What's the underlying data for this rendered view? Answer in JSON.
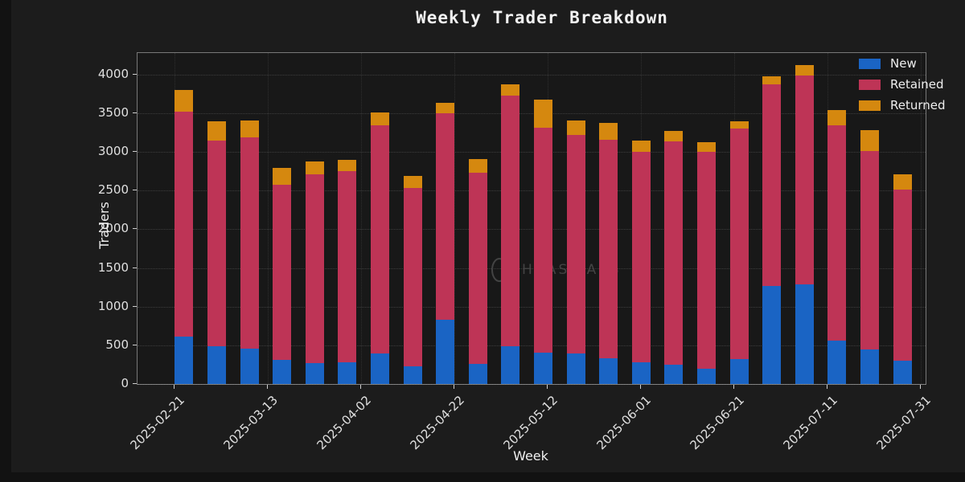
{
  "page": {
    "background": "#121212",
    "figure_background": "#1c1c1c",
    "plot_background": "#181818"
  },
  "title": "Weekly Trader Breakdown",
  "watermark": {
    "icon": "ellipse-logo-icon",
    "text": "HAAS LABS"
  },
  "axes": {
    "x_label": "Week",
    "y_label": "Traders"
  },
  "legend": {
    "position": "upper right",
    "items": [
      {
        "label": "New",
        "color": "#1a64c4"
      },
      {
        "label": "Retained",
        "color": "#be3456"
      },
      {
        "label": "Returned",
        "color": "#d5880f"
      }
    ]
  },
  "chart_data": {
    "type": "bar",
    "stacked": true,
    "title": "Weekly Trader Breakdown",
    "xlabel": "Week",
    "ylabel": "Traders",
    "x": [
      "2025-02-23",
      "2025-03-02",
      "2025-03-09",
      "2025-03-16",
      "2025-03-23",
      "2025-03-30",
      "2025-04-06",
      "2025-04-13",
      "2025-04-20",
      "2025-04-27",
      "2025-05-04",
      "2025-05-11",
      "2025-05-18",
      "2025-05-25",
      "2025-06-01",
      "2025-06-08",
      "2025-06-15",
      "2025-06-22",
      "2025-06-29",
      "2025-07-06",
      "2025-07-13",
      "2025-07-20",
      "2025-07-27"
    ],
    "series": [
      {
        "name": "New",
        "color": "#1a64c4",
        "values": [
          610,
          490,
          460,
          310,
          265,
          280,
          390,
          225,
          835,
          255,
          490,
          400,
          395,
          330,
          280,
          245,
          200,
          320,
          1265,
          1285,
          560,
          445,
          300
        ]
      },
      {
        "name": "Retained",
        "color": "#be3456",
        "values": [
          2910,
          2660,
          2730,
          2270,
          2445,
          2470,
          2950,
          2305,
          2665,
          2475,
          3240,
          2910,
          2825,
          2830,
          2720,
          2895,
          2800,
          2980,
          2605,
          2705,
          2790,
          2565,
          2210
        ]
      },
      {
        "name": "Returned",
        "color": "#d5880f",
        "values": [
          280,
          250,
          220,
          210,
          170,
          150,
          170,
          160,
          135,
          180,
          140,
          370,
          190,
          220,
          150,
          130,
          130,
          100,
          110,
          130,
          190,
          270,
          200
        ]
      }
    ],
    "x_tick_labels": [
      "2025-02-21",
      "2025-03-13",
      "2025-04-02",
      "2025-04-22",
      "2025-05-12",
      "2025-06-01",
      "2025-06-21",
      "2025-07-11",
      "2025-07-31"
    ],
    "y_ticks": [
      0,
      500,
      1000,
      1500,
      2000,
      2500,
      3000,
      3500,
      4000
    ],
    "ylim": [
      0,
      4280
    ],
    "x_axis_start": "2025-02-13",
    "x_axis_end": "2025-08-01",
    "bar_width_days": 4,
    "grid": "dotted",
    "legend_position": "upper right"
  }
}
